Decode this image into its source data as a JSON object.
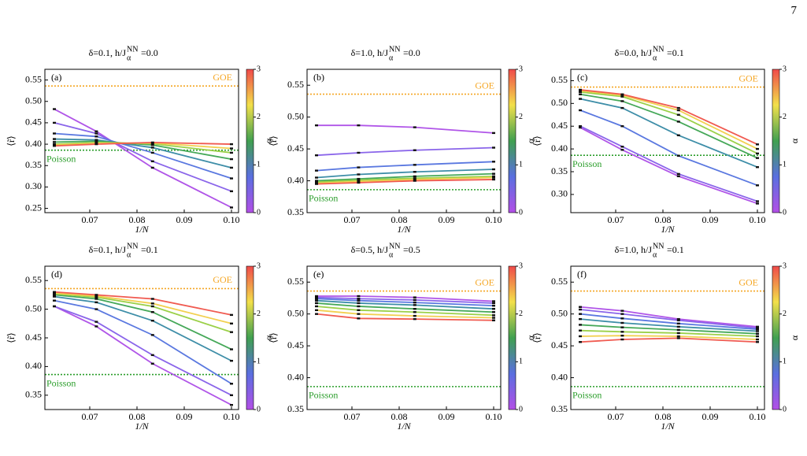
{
  "page_number": "7",
  "chart_data": [
    {
      "type": "line",
      "panel_label": "(a)",
      "title": [
        "δ=0.1,  h/J",
        "NN",
        "α",
        "=0.0"
      ],
      "xlabel": "1/N",
      "ylabel": "⟨r̃⟩",
      "x": [
        0.0625,
        0.0714,
        0.0833,
        0.1
      ],
      "xlim": [
        0.0605,
        0.1015
      ],
      "xticks": [
        0.07,
        0.08,
        0.09,
        {
          "value": 0.1,
          "label": "0.10"
        }
      ],
      "ylim": [
        0.24,
        0.575
      ],
      "yticks": [
        0.25,
        {
          "value": 0.3,
          "label": "0.30"
        },
        0.35,
        {
          "value": 0.4,
          "label": "0.40"
        },
        0.45,
        {
          "value": 0.5,
          "label": "0.50"
        },
        0.55
      ],
      "hlines": [
        {
          "label": "GOE",
          "value": 0.536,
          "color": "#f5a623"
        },
        {
          "label": "Poisson",
          "value": 0.386,
          "color": "#2a9d2a"
        }
      ],
      "colorbar": {
        "label": "α",
        "lim": [
          0,
          3
        ],
        "ticks": [
          0,
          1,
          2,
          3
        ],
        "colors": [
          "#b34fe6",
          "#5a6fe0",
          "#40a050",
          "#f2e04a",
          "#f04a4a"
        ]
      },
      "series": [
        {
          "color": "#b055e8",
          "values": [
            0.482,
            0.43,
            0.345,
            0.252
          ]
        },
        {
          "color": "#8a65ea",
          "values": [
            0.45,
            0.425,
            0.36,
            0.29
          ]
        },
        {
          "color": "#5a78e0",
          "values": [
            0.425,
            0.418,
            0.38,
            0.32
          ]
        },
        {
          "color": "#3e8ea8",
          "values": [
            0.412,
            0.41,
            0.392,
            0.345
          ]
        },
        {
          "color": "#45a858",
          "values": [
            0.405,
            0.407,
            0.398,
            0.365
          ]
        },
        {
          "color": "#9bd048",
          "values": [
            0.4,
            0.404,
            0.401,
            0.38
          ]
        },
        {
          "color": "#f2d050",
          "values": [
            0.398,
            0.402,
            0.403,
            0.39
          ]
        },
        {
          "color": "#f05a50",
          "values": [
            0.396,
            0.4,
            0.404,
            0.4
          ]
        }
      ]
    },
    {
      "type": "line",
      "panel_label": "(b)",
      "title": [
        "δ=1.0,  h/J",
        "NN",
        "α",
        "=0.0"
      ],
      "xlabel": "1/N",
      "ylabel": "⟨r̃⟩",
      "x": [
        0.0625,
        0.0714,
        0.0833,
        0.1
      ],
      "xlim": [
        0.0605,
        0.1015
      ],
      "xticks": [
        0.07,
        0.08,
        0.09,
        {
          "value": 0.1,
          "label": "0.10"
        }
      ],
      "ylim": [
        0.35,
        0.575
      ],
      "yticks": [
        0.35,
        {
          "value": 0.4,
          "label": "0.40"
        },
        0.45,
        {
          "value": 0.5,
          "label": "0.50"
        },
        0.55
      ],
      "hlines": [
        {
          "label": "GOE",
          "value": 0.536,
          "color": "#f5a623"
        },
        {
          "label": "Poisson",
          "value": 0.386,
          "color": "#2a9d2a"
        }
      ],
      "colorbar": {
        "label": "α",
        "lim": [
          0,
          3
        ],
        "ticks": [
          0,
          1,
          2,
          3
        ],
        "colors": [
          "#b34fe6",
          "#5a6fe0",
          "#40a050",
          "#f2e04a",
          "#f04a4a"
        ]
      },
      "series": [
        {
          "color": "#b055e8",
          "values": [
            0.487,
            0.487,
            0.484,
            0.475
          ]
        },
        {
          "color": "#8a65ea",
          "values": [
            0.44,
            0.444,
            0.448,
            0.452
          ]
        },
        {
          "color": "#5a78e0",
          "values": [
            0.416,
            0.421,
            0.425,
            0.43
          ]
        },
        {
          "color": "#3e8ea8",
          "values": [
            0.405,
            0.41,
            0.414,
            0.418
          ]
        },
        {
          "color": "#45a858",
          "values": [
            0.4,
            0.403,
            0.407,
            0.411
          ]
        },
        {
          "color": "#9bd048",
          "values": [
            0.398,
            0.401,
            0.404,
            0.407
          ]
        },
        {
          "color": "#f2d050",
          "values": [
            0.396,
            0.399,
            0.402,
            0.405
          ]
        },
        {
          "color": "#f05a50",
          "values": [
            0.395,
            0.397,
            0.4,
            0.402
          ]
        }
      ]
    },
    {
      "type": "line",
      "panel_label": "(c)",
      "title": [
        "δ=0.0,  h/J",
        "NN",
        "α",
        "=0.1"
      ],
      "xlabel": "1/N",
      "ylabel": "⟨r̃⟩",
      "x": [
        0.0625,
        0.0714,
        0.0833,
        0.1
      ],
      "xlim": [
        0.0605,
        0.1015
      ],
      "xticks": [
        0.07,
        0.08,
        0.09,
        {
          "value": 0.1,
          "label": "0.10"
        }
      ],
      "ylim": [
        0.26,
        0.575
      ],
      "yticks": [
        {
          "value": 0.3,
          "label": "0.30"
        },
        0.35,
        {
          "value": 0.4,
          "label": "0.40"
        },
        0.45,
        {
          "value": 0.5,
          "label": "0.50"
        },
        0.55
      ],
      "hlines": [
        {
          "label": "GOE",
          "value": 0.536,
          "color": "#f5a623"
        },
        {
          "label": "Poisson",
          "value": 0.386,
          "color": "#2a9d2a"
        }
      ],
      "colorbar": {
        "label": "α",
        "lim": [
          0,
          3
        ],
        "ticks": [
          0,
          1,
          2,
          3
        ],
        "colors": [
          "#b34fe6",
          "#5a6fe0",
          "#40a050",
          "#f2e04a",
          "#f04a4a"
        ]
      },
      "series": [
        {
          "color": "#b055e8",
          "values": [
            0.447,
            0.398,
            0.34,
            0.28
          ]
        },
        {
          "color": "#8a65ea",
          "values": [
            0.45,
            0.405,
            0.345,
            0.285
          ]
        },
        {
          "color": "#5a78e0",
          "values": [
            0.485,
            0.45,
            0.385,
            0.32
          ]
        },
        {
          "color": "#3e8ea8",
          "values": [
            0.51,
            0.49,
            0.43,
            0.36
          ]
        },
        {
          "color": "#45a858",
          "values": [
            0.52,
            0.505,
            0.46,
            0.38
          ]
        },
        {
          "color": "#9bd048",
          "values": [
            0.525,
            0.515,
            0.475,
            0.39
          ]
        },
        {
          "color": "#f2d050",
          "values": [
            0.528,
            0.518,
            0.485,
            0.4
          ]
        },
        {
          "color": "#f05a50",
          "values": [
            0.53,
            0.52,
            0.49,
            0.41
          ]
        }
      ]
    },
    {
      "type": "line",
      "panel_label": "(d)",
      "title": [
        "δ=0.1,  h/J",
        "NN",
        "α",
        "=0.1"
      ],
      "xlabel": "1/N",
      "ylabel": "⟨r̃⟩",
      "x": [
        0.0625,
        0.0714,
        0.0833,
        0.1
      ],
      "xlim": [
        0.0605,
        0.1015
      ],
      "xticks": [
        0.07,
        0.08,
        0.09,
        {
          "value": 0.1,
          "label": "0.10"
        }
      ],
      "ylim": [
        0.325,
        0.575
      ],
      "yticks": [
        0.35,
        {
          "value": 0.4,
          "label": "0.40"
        },
        0.45,
        {
          "value": 0.5,
          "label": "0.50"
        },
        0.55
      ],
      "hlines": [
        {
          "label": "GOE",
          "value": 0.536,
          "color": "#f5a623"
        },
        {
          "label": "Poisson",
          "value": 0.386,
          "color": "#2a9d2a"
        }
      ],
      "colorbar": {
        "label": "α",
        "lim": [
          0,
          3
        ],
        "ticks": [
          0,
          1,
          2,
          3
        ],
        "colors": [
          "#b34fe6",
          "#5a6fe0",
          "#40a050",
          "#f2e04a",
          "#f04a4a"
        ]
      },
      "series": [
        {
          "color": "#b055e8",
          "values": [
            0.505,
            0.47,
            0.405,
            0.333
          ]
        },
        {
          "color": "#8a65ea",
          "values": [
            0.505,
            0.478,
            0.42,
            0.35
          ]
        },
        {
          "color": "#5a78e0",
          "values": [
            0.515,
            0.5,
            0.455,
            0.37
          ]
        },
        {
          "color": "#3e8ea8",
          "values": [
            0.522,
            0.512,
            0.48,
            0.41
          ]
        },
        {
          "color": "#45a858",
          "values": [
            0.525,
            0.518,
            0.495,
            0.43
          ]
        },
        {
          "color": "#9bd048",
          "values": [
            0.527,
            0.521,
            0.505,
            0.46
          ]
        },
        {
          "color": "#f2d050",
          "values": [
            0.528,
            0.523,
            0.51,
            0.475
          ]
        },
        {
          "color": "#f05a50",
          "values": [
            0.53,
            0.525,
            0.518,
            0.49
          ]
        }
      ]
    },
    {
      "type": "line",
      "panel_label": "(e)",
      "title": [
        "δ=0.5,  h/J",
        "NN",
        "α",
        "=0.5"
      ],
      "xlabel": "1/N",
      "ylabel": "⟨r̃⟩",
      "x": [
        0.0625,
        0.0714,
        0.0833,
        0.1
      ],
      "xlim": [
        0.0605,
        0.1015
      ],
      "xticks": [
        0.07,
        0.08,
        0.09,
        {
          "value": 0.1,
          "label": "0.10"
        }
      ],
      "ylim": [
        0.35,
        0.575
      ],
      "yticks": [
        0.35,
        {
          "value": 0.4,
          "label": "0.40"
        },
        0.45,
        {
          "value": 0.5,
          "label": "0.50"
        },
        0.55
      ],
      "hlines": [
        {
          "label": "GOE",
          "value": 0.536,
          "color": "#f5a623"
        },
        {
          "label": "Poisson",
          "value": 0.386,
          "color": "#2a9d2a"
        }
      ],
      "colorbar": {
        "label": "α",
        "lim": [
          0,
          3
        ],
        "ticks": [
          0,
          1,
          2,
          3
        ],
        "colors": [
          "#b34fe6",
          "#5a6fe0",
          "#40a050",
          "#f2e04a",
          "#f04a4a"
        ]
      },
      "series": [
        {
          "color": "#b055e8",
          "values": [
            0.528,
            0.528,
            0.526,
            0.52
          ]
        },
        {
          "color": "#8a65ea",
          "values": [
            0.526,
            0.524,
            0.522,
            0.517
          ]
        },
        {
          "color": "#5a78e0",
          "values": [
            0.524,
            0.521,
            0.518,
            0.513
          ]
        },
        {
          "color": "#3e8ea8",
          "values": [
            0.521,
            0.517,
            0.514,
            0.508
          ]
        },
        {
          "color": "#45a858",
          "values": [
            0.517,
            0.512,
            0.508,
            0.503
          ]
        },
        {
          "color": "#9bd048",
          "values": [
            0.512,
            0.506,
            0.503,
            0.498
          ]
        },
        {
          "color": "#f2d050",
          "values": [
            0.506,
            0.5,
            0.497,
            0.494
          ]
        },
        {
          "color": "#f05a50",
          "values": [
            0.5,
            0.493,
            0.492,
            0.49
          ]
        }
      ]
    },
    {
      "type": "line",
      "panel_label": "(f)",
      "title": [
        "δ=1.0,  h/J",
        "NN",
        "α",
        "=0.1"
      ],
      "xlabel": "1/N",
      "ylabel": "⟨r̃⟩",
      "x": [
        0.0625,
        0.0714,
        0.0833,
        0.1
      ],
      "xlim": [
        0.0605,
        0.1015
      ],
      "xticks": [
        0.07,
        0.08,
        0.09,
        {
          "value": 0.1,
          "label": "0.10"
        }
      ],
      "ylim": [
        0.35,
        0.575
      ],
      "yticks": [
        0.35,
        {
          "value": 0.4,
          "label": "0.40"
        },
        0.45,
        {
          "value": 0.5,
          "label": "0.50"
        },
        0.55
      ],
      "hlines": [
        {
          "label": "GOE",
          "value": 0.536,
          "color": "#f5a623"
        },
        {
          "label": "Poisson",
          "value": 0.386,
          "color": "#2a9d2a"
        }
      ],
      "colorbar": {
        "label": "α",
        "lim": [
          0,
          3
        ],
        "ticks": [
          0,
          1,
          2,
          3
        ],
        "colors": [
          "#b34fe6",
          "#5a6fe0",
          "#40a050",
          "#f2e04a",
          "#f04a4a"
        ]
      },
      "series": [
        {
          "color": "#b055e8",
          "values": [
            0.511,
            0.505,
            0.492,
            0.48
          ]
        },
        {
          "color": "#8a65ea",
          "values": [
            0.507,
            0.5,
            0.49,
            0.478
          ]
        },
        {
          "color": "#5a78e0",
          "values": [
            0.5,
            0.493,
            0.485,
            0.476
          ]
        },
        {
          "color": "#3e8ea8",
          "values": [
            0.492,
            0.486,
            0.48,
            0.473
          ]
        },
        {
          "color": "#45a858",
          "values": [
            0.483,
            0.479,
            0.475,
            0.469
          ]
        },
        {
          "color": "#9bd048",
          "values": [
            0.474,
            0.472,
            0.47,
            0.465
          ]
        },
        {
          "color": "#f2d050",
          "values": [
            0.465,
            0.466,
            0.465,
            0.46
          ]
        },
        {
          "color": "#f05a50",
          "values": [
            0.456,
            0.46,
            0.462,
            0.456
          ]
        }
      ]
    }
  ]
}
